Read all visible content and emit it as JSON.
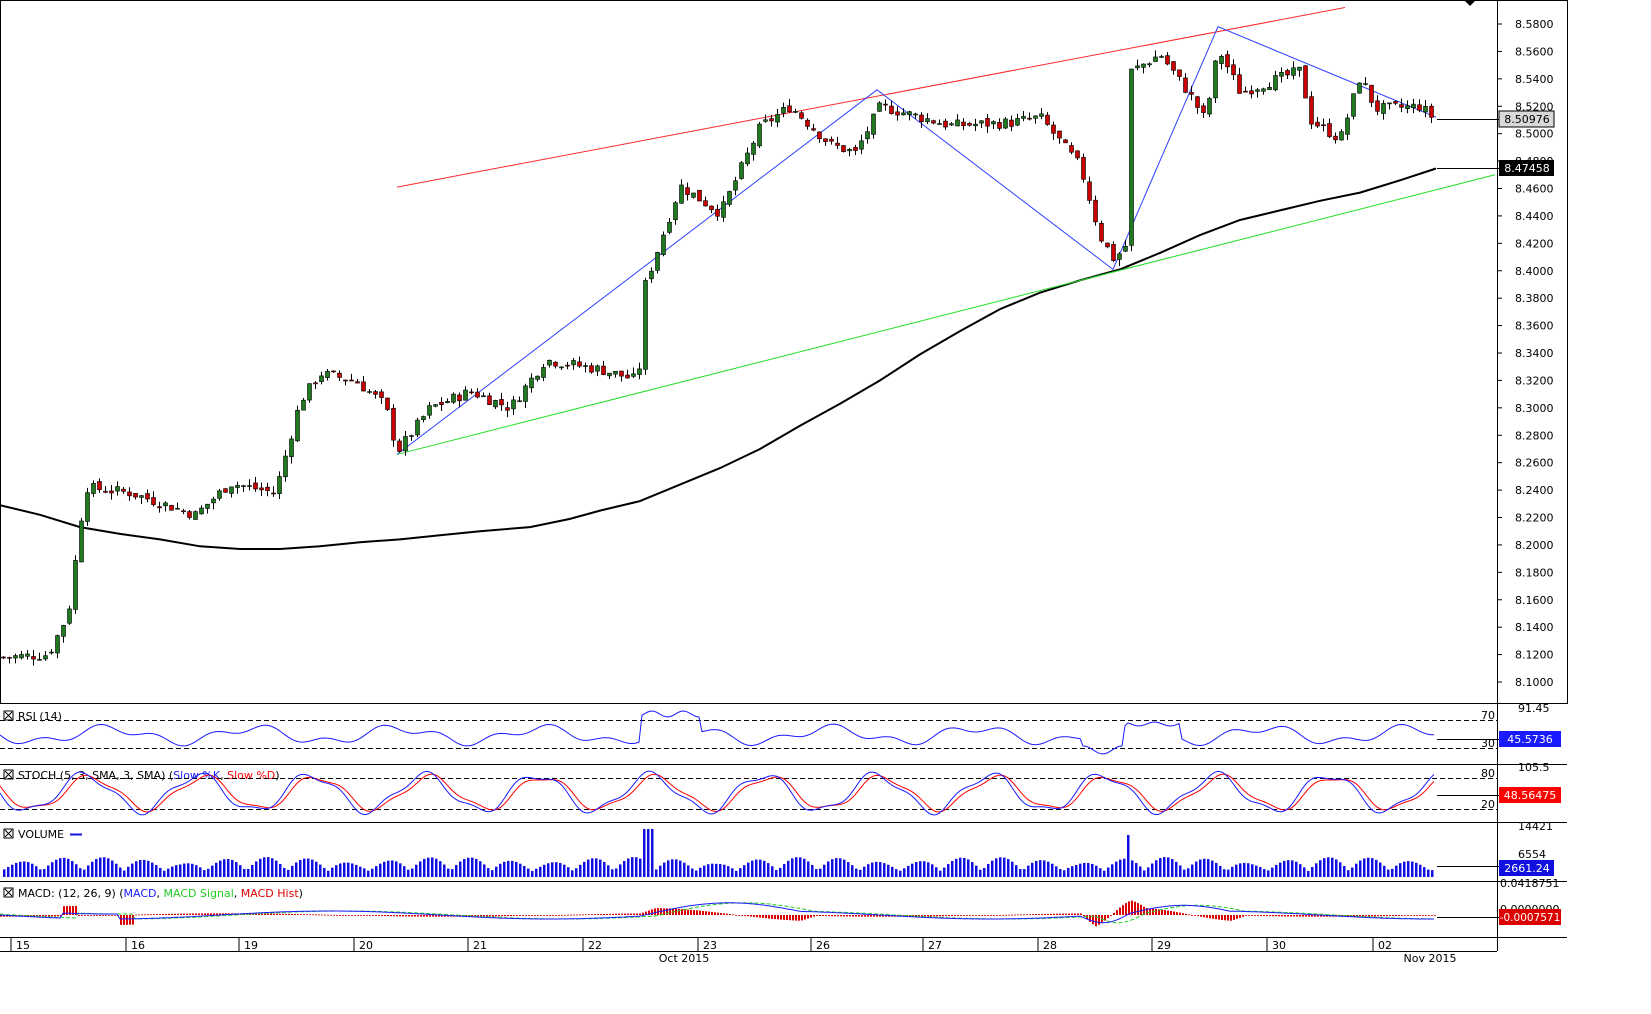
{
  "chart_data": {
    "type": "candlestick",
    "price_axis": {
      "ticks": [
        "8.5800",
        "8.5600",
        "8.5400",
        "8.5200",
        "8.5000",
        "8.4800",
        "8.4600",
        "8.4400",
        "8.4200",
        "8.4000",
        "8.3800",
        "8.3600",
        "8.3400",
        "8.3200",
        "8.3000",
        "8.2800",
        "8.2600",
        "8.2400",
        "8.2200",
        "8.2000",
        "8.1800",
        "8.1600",
        "8.1400",
        "8.1200",
        "8.1000"
      ],
      "range": [
        8.094,
        8.592
      ],
      "current_price": "8.50976",
      "ma_value": "8.47458"
    },
    "date_axis": {
      "labels": [
        "15",
        "16",
        "19",
        "20",
        "21",
        "22",
        "23",
        "26",
        "27",
        "28",
        "29",
        "30",
        "02"
      ],
      "months": [
        "Oct 2015",
        "Nov 2015"
      ]
    },
    "ma_points": [
      [
        0,
        8.229
      ],
      [
        40,
        8.222
      ],
      [
        80,
        8.213
      ],
      [
        120,
        8.208
      ],
      [
        160,
        8.204
      ],
      [
        200,
        8.199
      ],
      [
        240,
        8.197
      ],
      [
        280,
        8.197
      ],
      [
        320,
        8.199
      ],
      [
        360,
        8.202
      ],
      [
        400,
        8.204
      ],
      [
        440,
        8.207
      ],
      [
        480,
        8.21
      ],
      [
        530,
        8.213
      ],
      [
        570,
        8.219
      ],
      [
        600,
        8.225
      ],
      [
        640,
        8.232
      ],
      [
        680,
        8.244
      ],
      [
        720,
        8.256
      ],
      [
        760,
        8.27
      ],
      [
        800,
        8.287
      ],
      [
        840,
        8.303
      ],
      [
        880,
        8.32
      ],
      [
        920,
        8.339
      ],
      [
        960,
        8.356
      ],
      [
        1000,
        8.372
      ],
      [
        1040,
        8.384
      ],
      [
        1080,
        8.393
      ],
      [
        1120,
        8.401
      ],
      [
        1160,
        8.413
      ],
      [
        1200,
        8.426
      ],
      [
        1240,
        8.437
      ],
      [
        1280,
        8.444
      ],
      [
        1320,
        8.451
      ],
      [
        1360,
        8.457
      ],
      [
        1400,
        8.466
      ],
      [
        1436,
        8.4746
      ]
    ],
    "trendlines": {
      "resistance": [
        [
          397,
          8.461
        ],
        [
          1345,
          8.592
        ]
      ],
      "support": [
        [
          397,
          8.266
        ],
        [
          1495,
          8.47
        ]
      ],
      "zigzag": [
        [
          397,
          8.266
        ],
        [
          877,
          8.532
        ],
        [
          1113,
          8.401
        ],
        [
          1218,
          8.578
        ],
        [
          1436,
          8.512
        ]
      ]
    },
    "indicators": {
      "rsi": {
        "label": "RSI (14)",
        "value": "45.5736",
        "max": "91.45",
        "levels": [
          "70",
          "30"
        ]
      },
      "stoch": {
        "label": "STOCH (5, 3, SMA, 3, SMA)",
        "k_label": "Slow %K",
        "d_label": "Slow %D",
        "value": "48.56475",
        "max": "105.5",
        "levels": [
          "80",
          "20"
        ]
      },
      "volume": {
        "label": "VOLUME",
        "value": "2661.24",
        "ticks": [
          "14421",
          "6554"
        ]
      },
      "macd": {
        "label": "MACD: (12, 26, 9)",
        "line_label": "MACD",
        "signal_label": "MACD Signal",
        "hist_label": "MACD Hist",
        "value": "-0.0007571",
        "max": "0.0418751",
        "mid": "0.0000000"
      }
    }
  },
  "colors": {
    "bull": "#1f7a1f",
    "bear": "#cc0000",
    "ma": "#000000",
    "resistance": "#ff2a2a",
    "support": "#22dd22",
    "zigzag": "#3040ff",
    "rsi": "#1a1aff",
    "stoch_k": "#1a1aff",
    "stoch_d": "#ff0000",
    "volume": "#1010e0",
    "macd": "#1a1aff",
    "macd_signal": "#22cc22",
    "macd_hist": "#dd0000"
  }
}
